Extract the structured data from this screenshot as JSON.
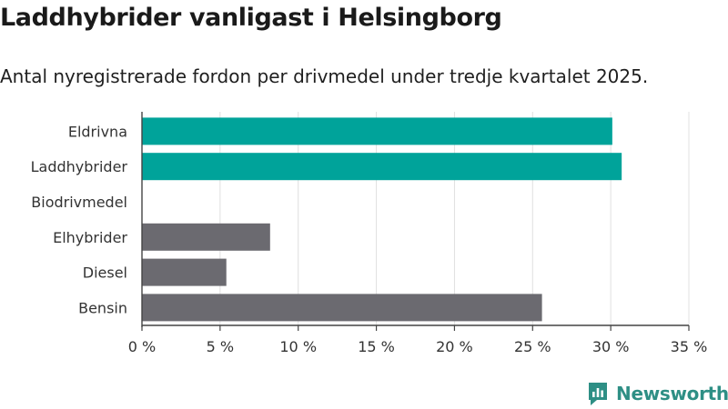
{
  "title": "Laddhybrider vanligast i Helsingborg",
  "subtitle": "Antal nyregistrerade fordon per drivmedel under tredje kvartalet 2025.",
  "brand": {
    "name": "Newsworthy",
    "icon": "newsworthy-logo-icon"
  },
  "colors": {
    "highlight": "#00a39a",
    "default": "#6b6a70",
    "grid": "#e0e0e0",
    "axis": "#444444"
  },
  "chart_data": {
    "type": "bar",
    "orientation": "horizontal",
    "title": "Laddhybrider vanligast i Helsingborg",
    "subtitle": "Antal nyregistrerade fordon per drivmedel under tredje kvartalet 2025.",
    "categories": [
      "Eldrivna",
      "Laddhybrider",
      "Biodrivmedel",
      "Elhybrider",
      "Diesel",
      "Bensin"
    ],
    "values": [
      30.1,
      30.7,
      0,
      8.2,
      5.4,
      25.6
    ],
    "unit": "%",
    "highlight": [
      "Eldrivna",
      "Laddhybrider"
    ],
    "xlim": [
      0,
      35
    ],
    "xticks": [
      0,
      5,
      10,
      15,
      20,
      25,
      30,
      35
    ],
    "xtick_labels": [
      "0 %",
      "5 %",
      "10 %",
      "15 %",
      "20 %",
      "25 %",
      "30 %",
      "35 %"
    ],
    "grid": true,
    "xlabel": "",
    "ylabel": ""
  }
}
